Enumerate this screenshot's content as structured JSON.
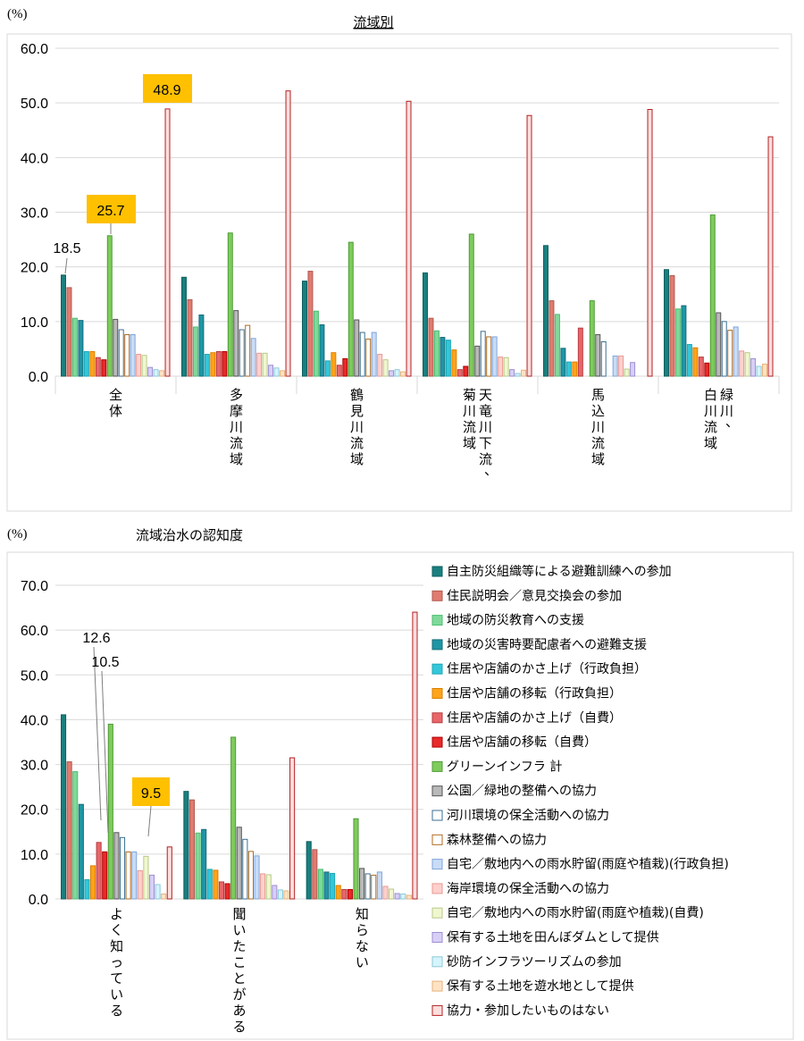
{
  "colors": {
    "series": [
      "#1a7f7f",
      "#e07b70",
      "#7fd99a",
      "#1f96a5",
      "#33c7d9",
      "#ffa31a",
      "#e8666a",
      "#e82a2a",
      "#7ecb5c",
      "#b9b9b9",
      "#ffffff",
      "#ffffff",
      "#c9dcf7",
      "#ffd0cc",
      "#f0f7cf",
      "#d8cff7",
      "#d6f4fb",
      "#ffe3c4",
      "#ffdede"
    ],
    "edges": [
      "#0f5f5f",
      "#b05a50",
      "#4bbf71",
      "#176b78",
      "#1fa6b8",
      "#d98000",
      "#b83c40",
      "#b00000",
      "#4f9c36",
      "#555555",
      "#3a6f90",
      "#b06a1f",
      "#7fa5d8",
      "#e89a92",
      "#b7c98a",
      "#9d8fd1",
      "#8cc9d9",
      "#e7b27a",
      "#b22222"
    ],
    "callout_fill": "#ffc000"
  },
  "legend": {
    "entries": [
      "自主防災組織等による避難訓練への参加",
      "住民説明会／意見交換会の参加",
      "地域の防災教育への支援",
      "地域の災害時要配慮者への避難支援",
      "住居や店舗のかさ上げ（行政負担）",
      "住居や店舗の移転（行政負担）",
      "住居や店舗のかさ上げ（自費）",
      "住居や店舗の移転（自費）",
      "グリーンインフラ 計",
      "公園／緑地の整備への協力",
      "河川環境の保全活動への協力",
      "森林整備への協力",
      "自宅／敷地内への雨水貯留(雨庭や植栽)(行政負担)",
      "海岸環境の保全活動への協力",
      "自宅／敷地内への雨水貯留(雨庭や植栽)(自費)",
      "保有する土地を田んぼダムとして提供",
      "砂防インフラツーリズムの参加",
      "保有する土地を遊水地として提供",
      "協力・参加したいものはない"
    ]
  },
  "chart_data": [
    {
      "type": "bar",
      "title": "流域別",
      "ylabel": "(%)",
      "ylim": [
        0,
        60
      ],
      "yticks": [
        "0.0",
        "10.0",
        "20.0",
        "30.0",
        "40.0",
        "50.0",
        "60.0"
      ],
      "categories": [
        "全体",
        "多摩川流域",
        "鶴見川流域",
        "天竜川下流、菊川流域",
        "馬込川流域",
        "緑川、白川流域"
      ],
      "series_values_by_category": [
        [
          18.5,
          16.2,
          10.6,
          10.2,
          4.5,
          4.5,
          3.4,
          3.0,
          25.7,
          10.4,
          8.5,
          7.6,
          7.6,
          4.0,
          3.8,
          1.6,
          1.2,
          1.0,
          48.9
        ],
        [
          18.1,
          14.0,
          9.0,
          11.2,
          4.0,
          4.3,
          4.5,
          4.5,
          26.2,
          12.0,
          8.5,
          9.3,
          6.9,
          4.2,
          4.2,
          2.0,
          1.5,
          1.0,
          52.2
        ],
        [
          17.4,
          19.2,
          11.9,
          9.4,
          2.8,
          4.3,
          2.0,
          3.2,
          24.5,
          10.3,
          8.0,
          6.8,
          8.0,
          4.0,
          3.0,
          1.0,
          1.2,
          0.8,
          50.3
        ],
        [
          18.9,
          10.6,
          8.3,
          7.1,
          6.6,
          4.8,
          1.2,
          1.8,
          26.0,
          5.5,
          8.2,
          7.2,
          7.2,
          3.5,
          3.4,
          1.2,
          0.5,
          1.1,
          47.7
        ],
        [
          23.9,
          13.8,
          11.3,
          5.1,
          2.6,
          2.6,
          8.8,
          0.0,
          13.8,
          7.6,
          6.3,
          0.0,
          3.7,
          3.7,
          1.3,
          2.5,
          0.0,
          0.0,
          48.8
        ],
        [
          19.5,
          18.4,
          12.3,
          12.9,
          5.8,
          5.2,
          3.5,
          2.4,
          29.5,
          11.6,
          10.0,
          8.4,
          9.0,
          4.6,
          4.3,
          3.2,
          1.8,
          2.2,
          43.8
        ]
      ],
      "callouts": [
        {
          "text": "48.9",
          "highlight": true
        },
        {
          "text": "25.7",
          "highlight": true
        },
        {
          "text": "18.5",
          "highlight": false
        }
      ]
    },
    {
      "type": "bar",
      "title": "流域治水の認知度",
      "ylabel": "(%)",
      "ylim": [
        0,
        70
      ],
      "yticks": [
        "0.0",
        "10.0",
        "20.0",
        "30.0",
        "40.0",
        "50.0",
        "60.0",
        "70.0"
      ],
      "categories": [
        "よく知っている",
        "聞いたことがある",
        "知らない"
      ],
      "series_values_by_category": [
        [
          41.1,
          30.6,
          28.4,
          21.1,
          4.3,
          7.4,
          12.6,
          10.5,
          39.0,
          14.8,
          13.7,
          10.5,
          10.5,
          6.3,
          9.5,
          5.3,
          3.2,
          1.1,
          11.6
        ],
        [
          24.0,
          22.1,
          14.7,
          15.5,
          6.6,
          6.4,
          3.8,
          3.4,
          36.1,
          16.0,
          13.3,
          10.6,
          9.6,
          5.6,
          5.4,
          3.0,
          2.0,
          1.8,
          31.5
        ],
        [
          12.8,
          11.0,
          6.6,
          6.0,
          5.7,
          3.0,
          2.1,
          2.1,
          17.9,
          6.8,
          5.6,
          5.3,
          6.0,
          2.8,
          2.2,
          1.2,
          1.1,
          0.8,
          64.0
        ]
      ],
      "callouts": [
        {
          "text": "12.6",
          "highlight": false
        },
        {
          "text": "10.5",
          "highlight": false
        },
        {
          "text": "9.5",
          "highlight": true
        }
      ]
    }
  ]
}
